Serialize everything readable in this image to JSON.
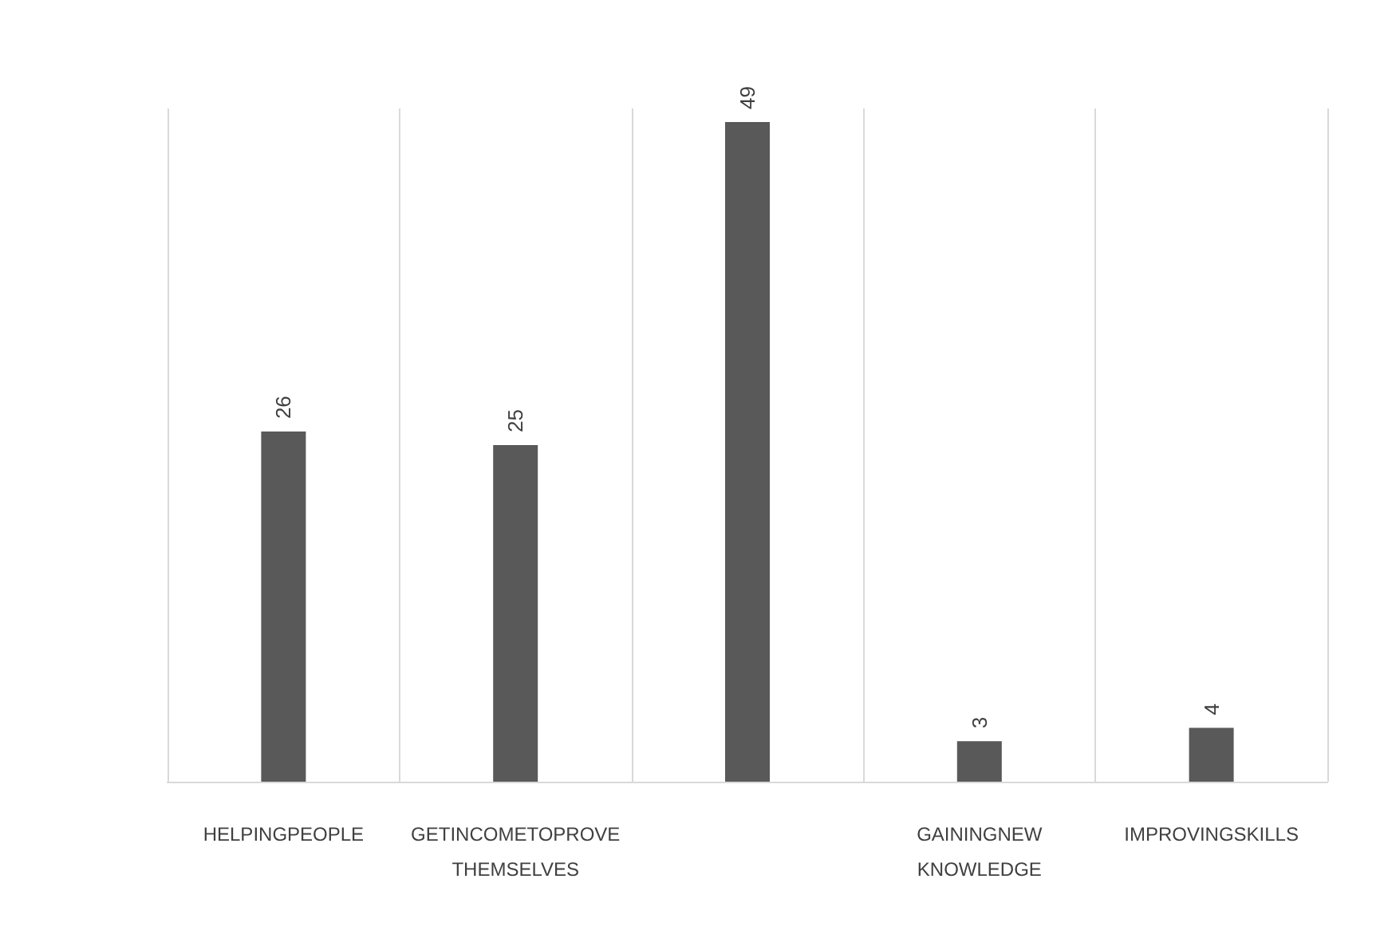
{
  "chart_data": {
    "type": "bar",
    "categories": [
      "HELPINGPEOPLE",
      "GETINCOMETOPROVE\nTHEMSELVES",
      null,
      "GAININGNEW\nKNOWLEDGE",
      "IMPROVINGSKILLS"
    ],
    "values": [
      26,
      25,
      49,
      3,
      4
    ],
    "color": "#595959",
    "data_labels": true,
    "grid": "x"
  }
}
